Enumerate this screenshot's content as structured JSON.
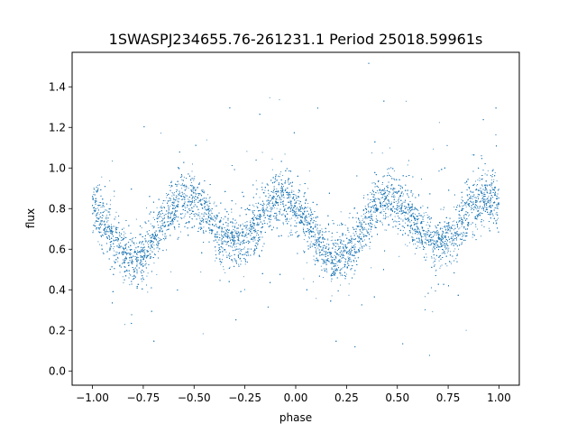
{
  "chart_data": {
    "type": "scatter",
    "title": "1SWASPJ234655.76-261231.1 Period 25018.59961s",
    "xlabel": "phase",
    "ylabel": "flux",
    "xlim": [
      -1.1,
      1.1
    ],
    "ylim": [
      -0.07,
      1.57
    ],
    "x_ticks": [
      -1.0,
      -0.75,
      -0.5,
      -0.25,
      0.0,
      0.25,
      0.5,
      0.75,
      1.0
    ],
    "x_tick_labels": [
      "−1.00",
      "−0.75",
      "−0.50",
      "−0.25",
      "0.00",
      "0.25",
      "0.50",
      "0.75",
      "1.00"
    ],
    "y_ticks": [
      0.0,
      0.2,
      0.4,
      0.6,
      0.8,
      1.0,
      1.2,
      1.4
    ],
    "y_tick_labels": [
      "0.0",
      "0.2",
      "0.4",
      "0.6",
      "0.8",
      "1.0",
      "1.2",
      "1.4"
    ],
    "grid": false,
    "marker_color": "#1f77b4",
    "series": [
      {
        "x_range": [
          -1.0,
          1.0
        ],
        "point_count": 14000,
        "light_curve": {
          "mean_flux": 0.72,
          "primary_amplitude": 0.13,
          "secondary_amplitude": 0.04,
          "primary_minimum_phase": -0.3,
          "secondary_minimum_phase": -0.8
        },
        "profile": [
          {
            "phase": -1.0,
            "flux": 0.82
          },
          {
            "phase": -0.9,
            "flux": 0.74
          },
          {
            "phase": -0.8,
            "flux": 0.63
          },
          {
            "phase": -0.7,
            "flux": 0.72
          },
          {
            "phase": -0.55,
            "flux": 0.83
          },
          {
            "phase": -0.4,
            "flux": 0.73
          },
          {
            "phase": -0.3,
            "flux": 0.57
          },
          {
            "phase": -0.2,
            "flux": 0.71
          },
          {
            "phase": -0.05,
            "flux": 0.83
          },
          {
            "phase": 0.1,
            "flux": 0.74
          },
          {
            "phase": 0.2,
            "flux": 0.63
          },
          {
            "phase": 0.3,
            "flux": 0.72
          },
          {
            "phase": 0.45,
            "flux": 0.83
          },
          {
            "phase": 0.6,
            "flux": 0.73
          },
          {
            "phase": 0.7,
            "flux": 0.57
          },
          {
            "phase": 0.8,
            "flux": 0.71
          },
          {
            "phase": 0.95,
            "flux": 0.83
          },
          {
            "phase": 1.0,
            "flux": 0.82
          }
        ]
      }
    ]
  }
}
